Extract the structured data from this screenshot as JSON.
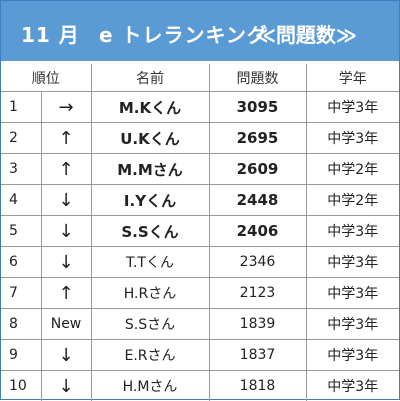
{
  "header": {
    "month": "11 月",
    "title": "e トレランキング",
    "subtitle": "≪問題数≫"
  },
  "columns": [
    "順位",
    "名前",
    "問題数",
    "学年"
  ],
  "rows": [
    {
      "rank": "1",
      "change": "→",
      "name": "M.Kくん",
      "count": "3095",
      "grade": "中学3年",
      "bold": true
    },
    {
      "rank": "2",
      "change": "↑",
      "name": "U.Kくん",
      "count": "2695",
      "grade": "中学3年",
      "bold": true
    },
    {
      "rank": "3",
      "change": "↑",
      "name": "M.Mさん",
      "count": "2609",
      "grade": "中学2年",
      "bold": true
    },
    {
      "rank": "4",
      "change": "↓",
      "name": "I.Yくん",
      "count": "2448",
      "grade": "中学2年",
      "bold": true
    },
    {
      "rank": "5",
      "change": "↓",
      "name": "S.Sくん",
      "count": "2406",
      "grade": "中学3年",
      "bold": true
    },
    {
      "rank": "6",
      "change": "↓",
      "name": "T.Tくん",
      "count": "2346",
      "grade": "中学3年",
      "bold": false
    },
    {
      "rank": "7",
      "change": "↑",
      "name": "H.Rさん",
      "count": "2123",
      "grade": "中学3年",
      "bold": false
    },
    {
      "rank": "8",
      "change": "New",
      "name": "S.Sさん",
      "count": "1839",
      "grade": "中学3年",
      "bold": false
    },
    {
      "rank": "9",
      "change": "↓",
      "name": "E.Rさん",
      "count": "1837",
      "grade": "中学3年",
      "bold": false
    },
    {
      "rank": "10",
      "change": "↓",
      "name": "H.Mさん",
      "count": "1818",
      "grade": "中学3年",
      "bold": false
    }
  ],
  "colors": {
    "header_bg": "#5b9bd5",
    "header_text": "#ffffff",
    "border": "#9a9a9a"
  }
}
